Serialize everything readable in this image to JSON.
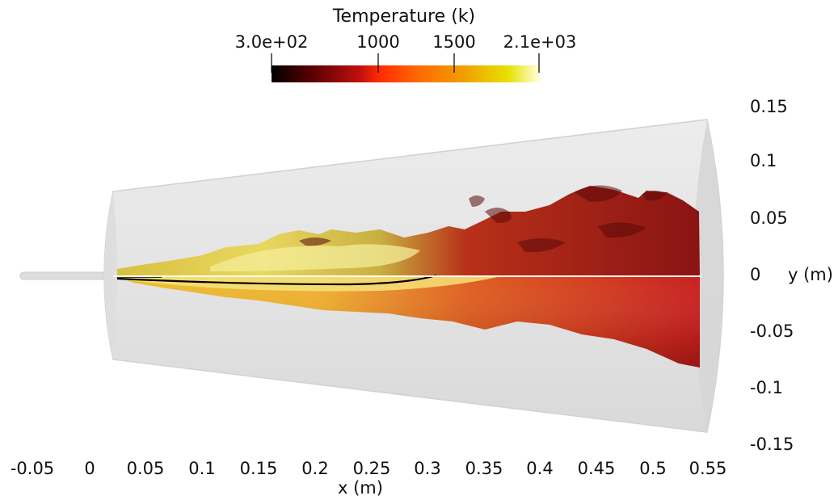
{
  "colorbar": {
    "title": "Temperature (k)",
    "tick_labels": [
      "3.0e+02",
      "1000",
      "1500",
      "2.1e+03"
    ],
    "tick_values": [
      300,
      1000,
      1500,
      2100
    ],
    "range": [
      300,
      2100
    ],
    "colors": [
      "#000000",
      "#5a0000",
      "#c01010",
      "#ff2a00",
      "#ff6a00",
      "#f0a000",
      "#e8e000",
      "#ffffe0"
    ]
  },
  "x_axis": {
    "label": "x (m)",
    "ticks": [
      "-0.05",
      "0",
      "0.05",
      "0.1",
      "0.15",
      "0.2",
      "0.25",
      "0.3",
      "0.35",
      "0.4",
      "0.45",
      "0.5",
      "0.55"
    ]
  },
  "y_axis": {
    "label": "y (m)",
    "ticks": [
      "0.15",
      "0.1",
      "0.05",
      "0",
      "-0.05",
      "-0.1",
      "-0.15"
    ]
  },
  "colors": {
    "chamber": "#e6e6e6",
    "chamber_edge": "#cfcfcf",
    "flame_outer": "#8a1010",
    "flame_mid": "#d42a18",
    "flame_hot": "#f0d040",
    "stoich_line": "#000000",
    "centerline": "#ffffff"
  }
}
